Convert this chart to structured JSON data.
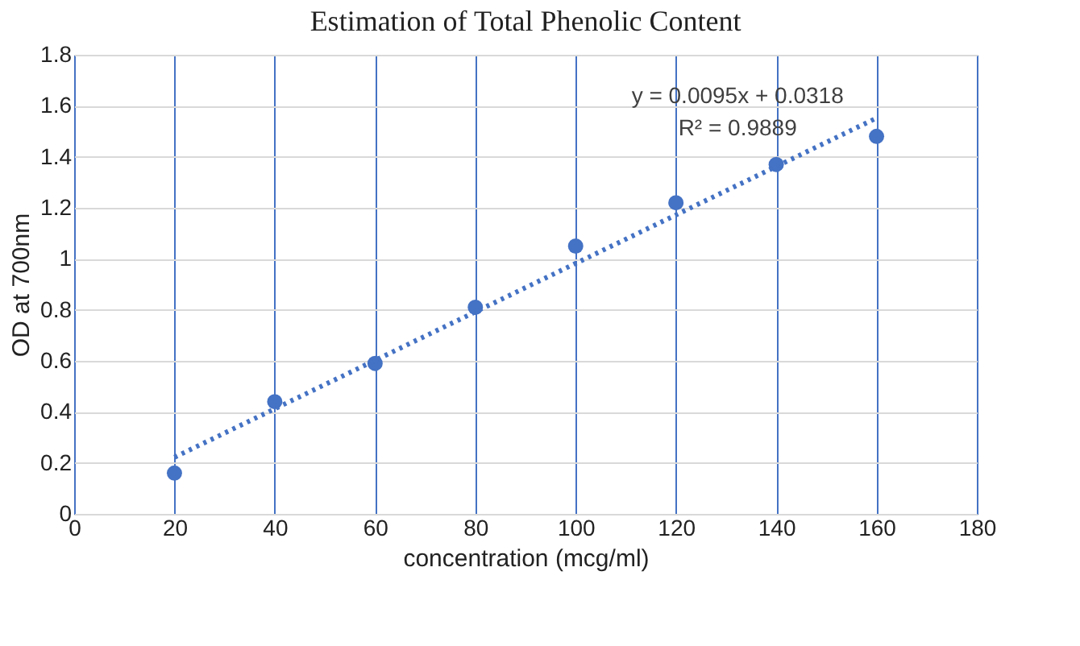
{
  "chart_data": {
    "type": "scatter",
    "title": "Estimation of Total Phenolic Content",
    "xlabel": "concentration (mcg/ml)",
    "ylabel": "OD at 700nm",
    "x": [
      20,
      40,
      60,
      80,
      100,
      120,
      140,
      160
    ],
    "series": [
      {
        "color": "#4472c4",
        "marker": "circle",
        "values": [
          0.16,
          0.44,
          0.59,
          0.81,
          1.05,
          1.22,
          1.37,
          1.48
        ]
      },
      {
        "type": "line",
        "color": "#4472c4",
        "line_style": "dotted",
        "x": [
          20,
          160
        ],
        "values": [
          0.222,
          1.552
        ]
      }
    ],
    "annotations": [
      "y = 0.0095x + 0.0318",
      "R² = 0.9889"
    ],
    "xlim": [
      0,
      180
    ],
    "ylim": [
      0,
      1.8
    ],
    "xticks": [
      0,
      20,
      40,
      60,
      80,
      100,
      120,
      140,
      160,
      180
    ],
    "yticks": [
      0,
      0.2,
      0.4,
      0.6,
      0.8,
      1,
      1.2,
      1.4,
      1.6,
      1.8
    ],
    "grid": true
  }
}
